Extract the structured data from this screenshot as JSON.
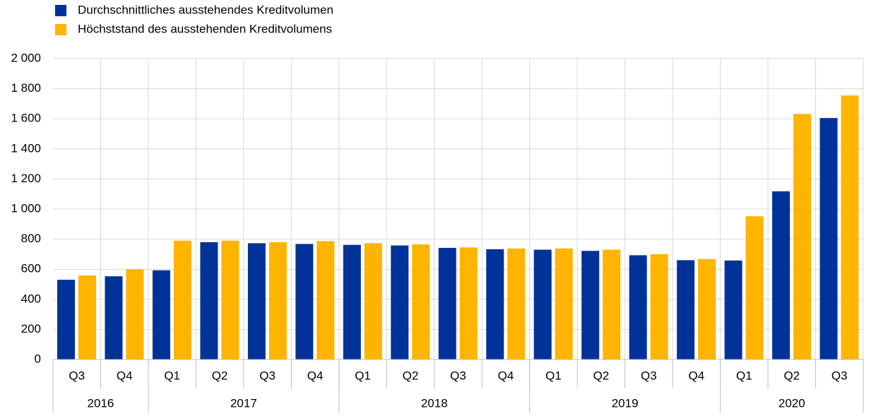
{
  "chart_data": {
    "type": "bar",
    "year_groups": [
      {
        "label": "2016",
        "categories": [
          "Q3",
          "Q4"
        ]
      },
      {
        "label": "2017",
        "categories": [
          "Q1",
          "Q2",
          "Q3",
          "Q4"
        ]
      },
      {
        "label": "2018",
        "categories": [
          "Q1",
          "Q2",
          "Q3",
          "Q4"
        ]
      },
      {
        "label": "2019",
        "categories": [
          "Q1",
          "Q2",
          "Q3",
          "Q4"
        ]
      },
      {
        "label": "2020",
        "categories": [
          "Q1",
          "Q2",
          "Q3"
        ]
      }
    ],
    "series": [
      {
        "name": "Durchschnittliches ausstehendes Kreditvolumen",
        "color": "#003299",
        "values": [
          530,
          553,
          593,
          780,
          773,
          768,
          762,
          758,
          742,
          733,
          730,
          722,
          693,
          660,
          658,
          1118,
          1605
        ]
      },
      {
        "name": "Höchststand des ausstehenden Kreditvolumens",
        "color": "#ffb400",
        "values": [
          558,
          600,
          790,
          790,
          780,
          787,
          773,
          765,
          745,
          738,
          738,
          730,
          700,
          668,
          952,
          1632,
          1755
        ]
      }
    ],
    "ylim": [
      0,
      2000
    ],
    "yticks": [
      0,
      200,
      400,
      600,
      800,
      {
        "value": 1000,
        "label": "1 000"
      },
      {
        "value": 1200,
        "label": "1 200"
      },
      {
        "value": 1400,
        "label": "1 400"
      },
      {
        "value": 1600,
        "label": "1 600"
      },
      {
        "value": 1800,
        "label": "1 800"
      },
      {
        "value": 2000,
        "label": "2 000"
      }
    ],
    "grid": true,
    "legend": "top-left"
  }
}
